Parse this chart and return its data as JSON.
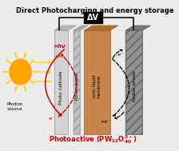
{
  "title": "Direct Photocharging and energy storage",
  "delta_v": "ΔV",
  "photo_cathode_label": "Photo cathode",
  "porous_paper_label": "Porous paper",
  "ionic_liquid_label": "Ionic liquid\nmembrane",
  "redox_anode_label": "Redox anode",
  "photon_source_label": "Photon\nsource",
  "hv_label": "+hν",
  "e_plus_label": "+e⁻",
  "e_minus_label": "- e⁻",
  "e_plus2_label": "+e⁻",
  "bg_color": "#ebebeb",
  "plate1_color": "#d3d3d3",
  "plate1_top_color": "#bbbbbb",
  "plate2_color": "#c8c8c8",
  "plate3_color": "#c8844a",
  "plate3_top_color": "#b87040",
  "plate4_color": "#888888",
  "plate4_top_color": "#707070",
  "sun_body_color": "#FFA500",
  "sun_ray_color": "#FFD700",
  "red_color": "#cc0000",
  "black_color": "#000000",
  "wire_color": "#111111"
}
